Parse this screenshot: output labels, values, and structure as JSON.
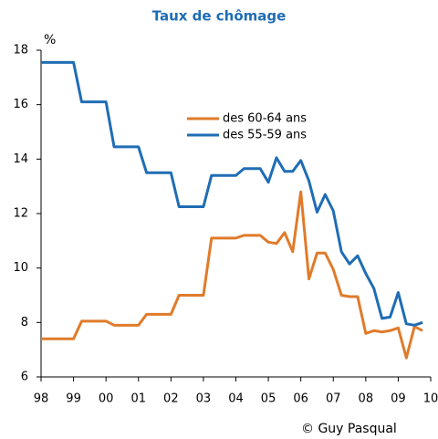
{
  "chart_data": {
    "type": "line",
    "title": "Taux de chômage",
    "ylabel": "%",
    "footer": "© Guy Pasqual",
    "x": [
      1998,
      1999,
      1999.25,
      2000,
      2000.25,
      2001,
      2001.25,
      2002,
      2002.25,
      2003,
      2003.25,
      2004,
      2004.25,
      2004.75,
      2005,
      2005.25,
      2005.5,
      2005.75,
      2006,
      2006.25,
      2006.5,
      2006.75,
      2007,
      2007.25,
      2007.5,
      2007.75,
      2008,
      2008.25,
      2008.5,
      2008.75,
      2009,
      2009.25,
      2009.5,
      2009.75
    ],
    "series": [
      {
        "name": "des 60-64 ans",
        "color": "#e07b2a",
        "values": [
          7.4,
          7.4,
          8.05,
          8.05,
          7.9,
          7.9,
          8.3,
          8.3,
          9.0,
          9.0,
          11.1,
          11.1,
          11.2,
          11.2,
          10.95,
          10.9,
          11.3,
          10.6,
          12.8,
          9.6,
          10.55,
          10.55,
          9.95,
          9.0,
          8.95,
          8.95,
          7.6,
          7.7,
          7.65,
          7.7,
          7.8,
          6.7,
          7.85,
          7.7
        ]
      },
      {
        "name": "des 55-59 ans",
        "color": "#1f6db5",
        "values": [
          17.55,
          17.55,
          16.1,
          16.1,
          14.45,
          14.45,
          13.5,
          13.5,
          12.25,
          12.25,
          13.4,
          13.4,
          13.65,
          13.65,
          13.15,
          14.05,
          13.55,
          13.55,
          13.95,
          13.2,
          12.05,
          12.7,
          12.1,
          10.6,
          10.15,
          10.45,
          9.8,
          9.25,
          8.15,
          8.2,
          9.1,
          7.95,
          7.9,
          8.0
        ]
      }
    ],
    "xlim": [
      1998,
      2010
    ],
    "xticks": [
      {
        "value": 1998,
        "label": "98"
      },
      {
        "value": 1999,
        "label": "99"
      },
      {
        "value": 2000,
        "label": "00"
      },
      {
        "value": 2001,
        "label": "01"
      },
      {
        "value": 2002,
        "label": "02"
      },
      {
        "value": 2003,
        "label": "03"
      },
      {
        "value": 2004,
        "label": "04"
      },
      {
        "value": 2005,
        "label": "05"
      },
      {
        "value": 2006,
        "label": "06"
      },
      {
        "value": 2007,
        "label": "07"
      },
      {
        "value": 2008,
        "label": "08"
      },
      {
        "value": 2009,
        "label": "09"
      },
      {
        "value": 2010,
        "label": "10"
      }
    ],
    "ylim": [
      6,
      18
    ],
    "yticks": [
      6,
      8,
      10,
      12,
      14,
      16,
      18
    ],
    "grid": false
  }
}
